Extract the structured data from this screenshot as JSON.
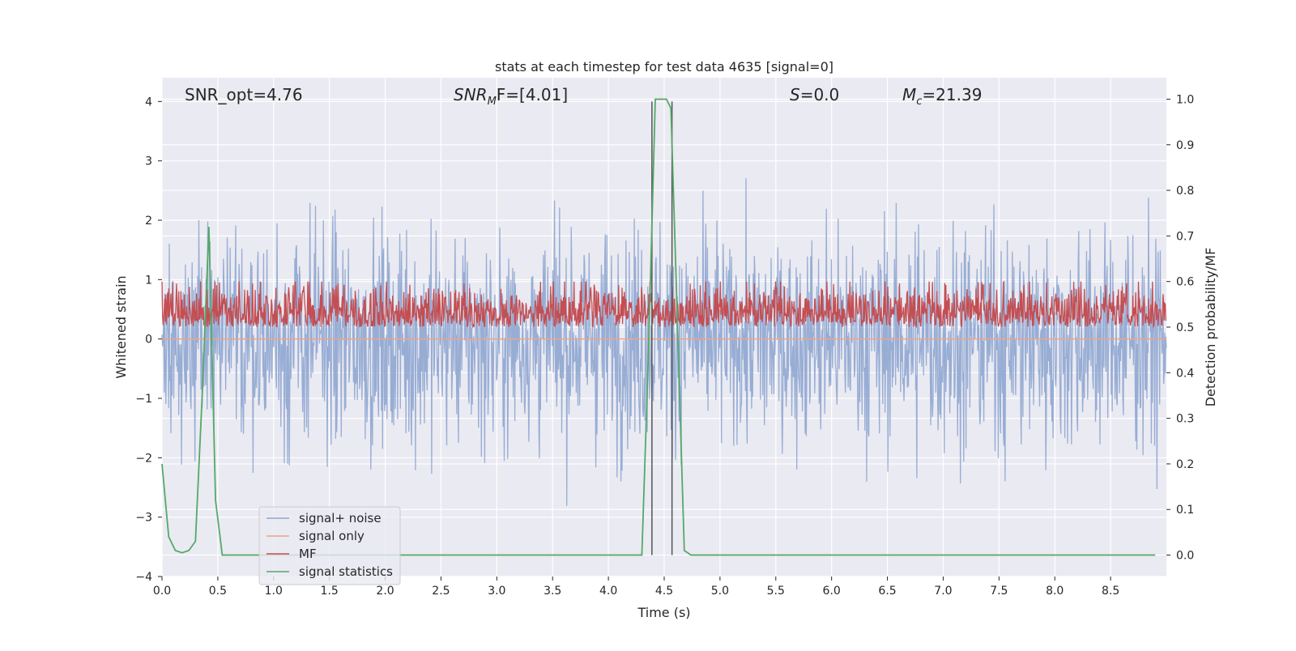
{
  "chart_data": {
    "type": "line",
    "title": "stats at each timestep for test data 4635 [signal=0]",
    "xlabel": "Time (s)",
    "ylabel": "Whitened strain",
    "y2label": "Detection probability/MF",
    "xlim": [
      0.0,
      9.0
    ],
    "ylim": [
      -4.0,
      4.4
    ],
    "y2lim": [
      -0.047,
      1.047
    ],
    "xticks": [
      "0.0",
      "0.5",
      "1.0",
      "1.5",
      "2.0",
      "2.5",
      "3.0",
      "3.5",
      "4.0",
      "4.5",
      "5.0",
      "5.5",
      "6.0",
      "6.5",
      "7.0",
      "7.5",
      "8.0",
      "8.5"
    ],
    "yticks": [
      "4",
      "3",
      "2",
      "1",
      "0",
      "−1",
      "−2",
      "−3",
      "−4"
    ],
    "y2ticks": [
      "1.0",
      "0.9",
      "0.8",
      "0.7",
      "0.6",
      "0.5",
      "0.4",
      "0.3",
      "0.2",
      "0.1",
      "0.0"
    ],
    "grid": true,
    "legend_position": "lower-left",
    "annotations": {
      "snr_opt": "SNR_opt=4.76",
      "snr_mf_main": "SNR",
      "snr_mf_sub": "M",
      "snr_mf_rest": "F=[4.01]",
      "s_main": "S",
      "s_rest": "=0.0",
      "mc_main": "M",
      "mc_sub": "c",
      "mc_rest": "=21.39"
    },
    "vlines": [
      4.39,
      4.57
    ],
    "series": [
      {
        "name": "signal+ noise",
        "color": "#8fa6d0",
        "axis": "left",
        "envelope": {
          "mean": 0.0,
          "std": 0.9,
          "n_points": 1800,
          "y_max": 4.0,
          "y_min": -3.6
        }
      },
      {
        "name": "signal only",
        "color": "#e8a68c",
        "axis": "left",
        "values_constant": 0.0
      },
      {
        "name": "MF",
        "color": "#c44e52",
        "axis": "right",
        "envelope": {
          "baseline": 0.5,
          "typical_max": 0.58,
          "y_max": 0.6,
          "n_points": 1800
        }
      },
      {
        "name": "signal statistics",
        "color": "#55a868",
        "axis": "right",
        "x": [
          0.0,
          0.06,
          0.12,
          0.18,
          0.24,
          0.3,
          0.36,
          0.42,
          0.48,
          0.54,
          0.6,
          0.8,
          1.0,
          2.0,
          3.0,
          4.0,
          4.3,
          4.36,
          4.42,
          4.46,
          4.52,
          4.56,
          4.62,
          4.68,
          4.74,
          8.9
        ],
        "y": [
          0.2,
          0.04,
          0.01,
          0.005,
          0.01,
          0.03,
          0.35,
          0.72,
          0.12,
          0.0,
          0.0,
          0.0,
          0.0,
          0.0,
          0.0,
          0.0,
          0.0,
          0.45,
          1.0,
          1.0,
          1.0,
          0.98,
          0.5,
          0.01,
          0.0,
          0.0
        ]
      }
    ]
  }
}
